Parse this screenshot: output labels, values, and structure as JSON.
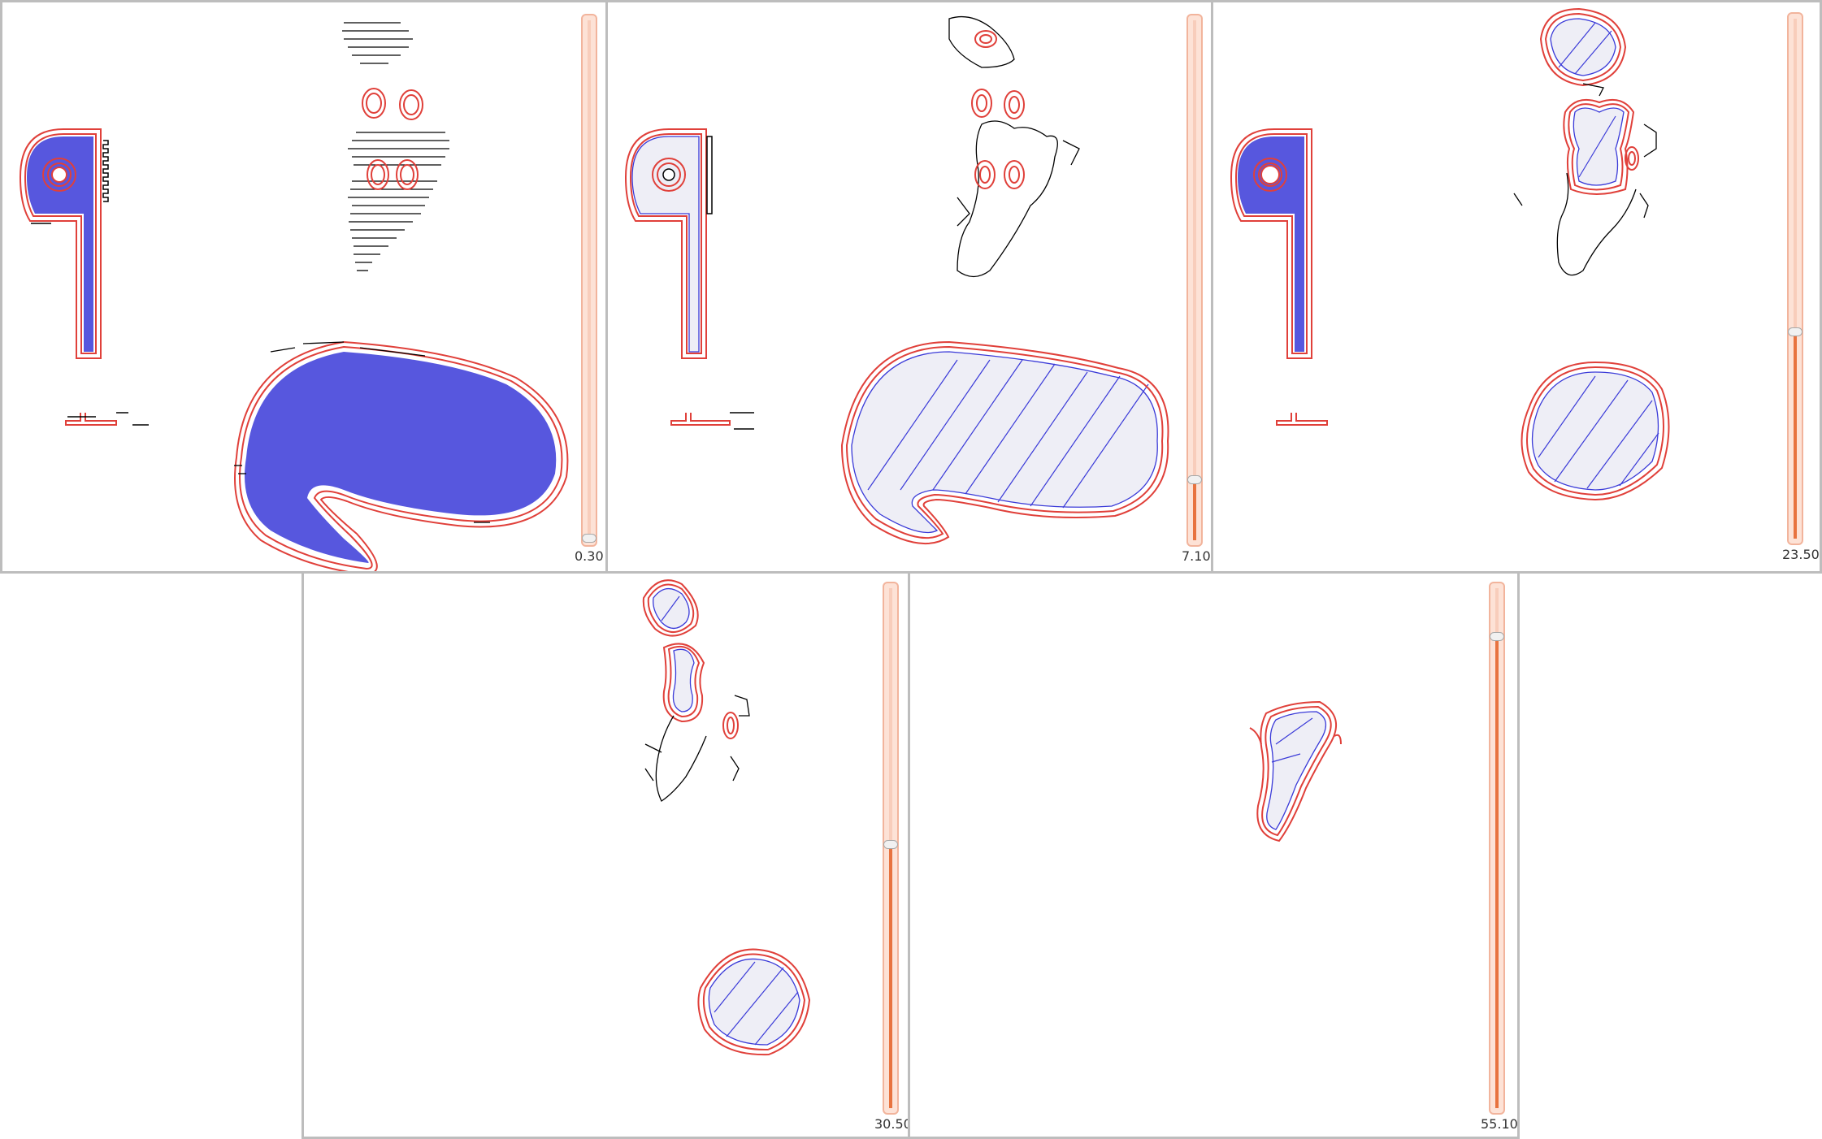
{
  "colors": {
    "perimeter": "#e0403a",
    "infill": "#3a3ad8",
    "outline": "#000000",
    "fill_area_light": "#eeeef6",
    "slider_track": "#fde2d6",
    "slider_fill": "#e8733f"
  },
  "panels": [
    {
      "id": "layer-view-1",
      "layer_value": "0.30",
      "slider_level": 0.0
    },
    {
      "id": "layer-view-2",
      "layer_value": "7.10",
      "slider_level": 0.13
    },
    {
      "id": "layer-view-3",
      "layer_value": "23.50",
      "slider_level": 0.43
    },
    {
      "id": "layer-view-4",
      "layer_value": "30.50",
      "slider_level": 0.56
    },
    {
      "id": "layer-view-5",
      "layer_value": "55.10",
      "slider_level": 1.0
    }
  ]
}
